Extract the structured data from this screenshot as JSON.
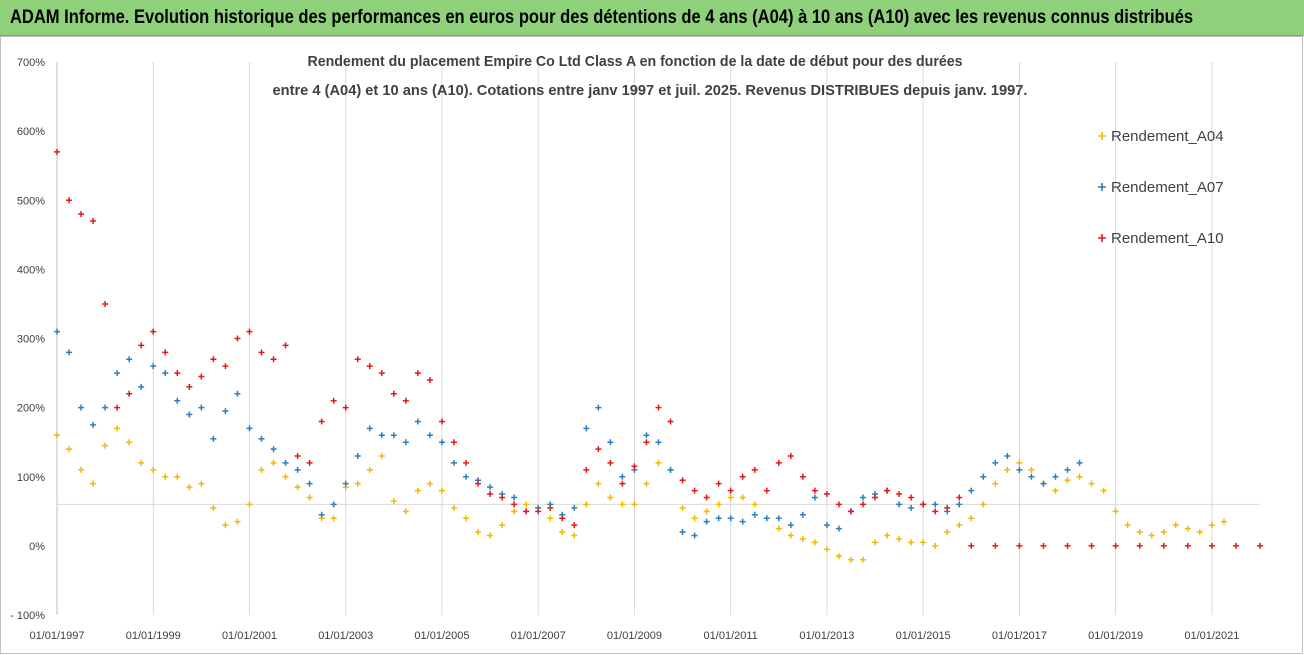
{
  "banner": {
    "title": "ADAM Informe. Evolution historique des performances en euros pour des détentions de 4 ans (A04) à 10 ans (A10) avec les revenus connus distribués"
  },
  "chart_data": {
    "type": "scatter",
    "title_lines": [
      "Rendement du placement Empire Co Ltd Class A en fonction de la date de début pour des durées",
      "entre 4 (A04) et 10 ans (A10). Cotations entre janv 1997 et juil. 2025. Revenus DISTRIBUES depuis janv. 1997."
    ],
    "y_ticks": [
      "700%",
      "600%",
      "500%",
      "400%",
      "300%",
      "200%",
      "100%",
      "0%",
      "- 100%"
    ],
    "ylim": [
      -100,
      700
    ],
    "x_ticks": [
      "01/01/1997",
      "01/01/1999",
      "01/01/2001",
      "01/01/2003",
      "01/01/2005",
      "01/01/2007",
      "01/01/2009",
      "01/01/2011",
      "01/01/2013",
      "01/01/2015",
      "01/01/2017",
      "01/01/2019",
      "01/01/2021"
    ],
    "xlim": [
      1997.0,
      2022.0
    ],
    "grid": "vertical",
    "legend_position": "right",
    "series": [
      {
        "name": "Rendement_A04",
        "color": "#f5b800",
        "x": [
          1997.0,
          1997.25,
          1997.5,
          1997.75,
          1998.0,
          1998.25,
          1998.5,
          1998.75,
          1999.0,
          1999.25,
          1999.5,
          1999.75,
          2000.0,
          2000.25,
          2000.5,
          2000.75,
          2001.0,
          2001.25,
          2001.5,
          2001.75,
          2002.0,
          2002.25,
          2002.5,
          2002.75,
          2003.0,
          2003.25,
          2003.5,
          2003.75,
          2004.0,
          2004.25,
          2004.5,
          2004.75,
          2005.0,
          2005.25,
          2005.5,
          2005.75,
          2006.0,
          2006.25,
          2006.5,
          2006.75,
          2007.0,
          2007.25,
          2007.5,
          2007.75,
          2008.0,
          2008.25,
          2008.5,
          2008.75,
          2009.0,
          2009.25,
          2009.5,
          2009.75,
          2010.0,
          2010.25,
          2010.5,
          2010.75,
          2011.0,
          2011.25,
          2011.5,
          2011.75,
          2012.0,
          2012.25,
          2012.5,
          2012.75,
          2013.0,
          2013.25,
          2013.5,
          2013.75,
          2014.0,
          2014.25,
          2014.5,
          2014.75,
          2015.0,
          2015.25,
          2015.5,
          2015.75,
          2016.0,
          2016.25,
          2016.5,
          2016.75,
          2017.0,
          2017.25,
          2017.5,
          2017.75,
          2018.0,
          2018.25,
          2018.5,
          2018.75,
          2019.0,
          2019.25,
          2019.5,
          2019.75,
          2020.0,
          2020.25,
          2020.5,
          2020.75,
          2021.0,
          2021.25
        ],
        "y": [
          160,
          140,
          110,
          90,
          145,
          170,
          150,
          120,
          110,
          100,
          100,
          85,
          90,
          55,
          30,
          35,
          60,
          110,
          120,
          100,
          85,
          70,
          40,
          40,
          85,
          90,
          110,
          130,
          65,
          50,
          80,
          90,
          80,
          55,
          40,
          20,
          15,
          30,
          50,
          60,
          55,
          40,
          20,
          15,
          60,
          90,
          70,
          60,
          60,
          90,
          120,
          110,
          55,
          40,
          50,
          60,
          70,
          70,
          60,
          40,
          25,
          15,
          10,
          5,
          -5,
          -15,
          -20,
          -20,
          5,
          15,
          10,
          5,
          5,
          0,
          20,
          30,
          40,
          60,
          90,
          110,
          120,
          110,
          90,
          80,
          95,
          100,
          90,
          80,
          50,
          30,
          20,
          15,
          20,
          30,
          25,
          20,
          30,
          35
        ]
      },
      {
        "name": "Rendement_A07",
        "color": "#2a7fc4",
        "x": [
          1997.0,
          1997.25,
          1997.5,
          1997.75,
          1998.0,
          1998.25,
          1998.5,
          1998.75,
          1999.0,
          1999.25,
          1999.5,
          1999.75,
          2000.0,
          2000.25,
          2000.5,
          2000.75,
          2001.0,
          2001.25,
          2001.5,
          2001.75,
          2002.0,
          2002.25,
          2002.5,
          2002.75,
          2003.0,
          2003.25,
          2003.5,
          2003.75,
          2004.0,
          2004.25,
          2004.5,
          2004.75,
          2005.0,
          2005.25,
          2005.5,
          2005.75,
          2006.0,
          2006.25,
          2006.5,
          2006.75,
          2007.0,
          2007.25,
          2007.5,
          2007.75,
          2008.0,
          2008.25,
          2008.5,
          2008.75,
          2009.0,
          2009.25,
          2009.5,
          2009.75,
          2010.0,
          2010.25,
          2010.5,
          2010.75,
          2011.0,
          2011.25,
          2011.5,
          2011.75,
          2012.0,
          2012.25,
          2012.5,
          2012.75,
          2013.0,
          2013.25,
          2013.5,
          2013.75,
          2014.0,
          2014.25,
          2014.5,
          2014.75,
          2015.0,
          2015.25,
          2015.5,
          2015.75,
          2016.0,
          2016.25,
          2016.5,
          2016.75,
          2017.0,
          2017.25,
          2017.5,
          2017.75,
          2018.0,
          2018.25
        ],
        "y": [
          310,
          280,
          200,
          175,
          200,
          250,
          270,
          230,
          260,
          250,
          210,
          190,
          200,
          155,
          195,
          220,
          170,
          155,
          140,
          120,
          110,
          90,
          45,
          60,
          90,
          130,
          170,
          160,
          160,
          150,
          180,
          160,
          150,
          120,
          100,
          95,
          85,
          75,
          70,
          50,
          55,
          60,
          45,
          55,
          170,
          200,
          150,
          100,
          110,
          160,
          150,
          110,
          20,
          15,
          35,
          40,
          40,
          35,
          45,
          40,
          40,
          30,
          45,
          70,
          30,
          25,
          50,
          70,
          75,
          80,
          60,
          55,
          60,
          60,
          50,
          60,
          80,
          100,
          120,
          130,
          110,
          100,
          90,
          100,
          110,
          120
        ]
      },
      {
        "name": "Rendement_A10",
        "color": "#e31a1c",
        "x": [
          1997.0,
          1997.25,
          1997.5,
          1997.75,
          1998.0,
          1998.25,
          1998.5,
          1998.75,
          1999.0,
          1999.25,
          1999.5,
          1999.75,
          2000.0,
          2000.25,
          2000.5,
          2000.75,
          2001.0,
          2001.25,
          2001.5,
          2001.75,
          2002.0,
          2002.25,
          2002.5,
          2002.75,
          2003.0,
          2003.25,
          2003.5,
          2003.75,
          2004.0,
          2004.25,
          2004.5,
          2004.75,
          2005.0,
          2005.25,
          2005.5,
          2005.75,
          2006.0,
          2006.25,
          2006.5,
          2006.75,
          2007.0,
          2007.25,
          2007.5,
          2007.75,
          2008.0,
          2008.25,
          2008.5,
          2008.75,
          2009.0,
          2009.25,
          2009.5,
          2009.75,
          2010.0,
          2010.25,
          2010.5,
          2010.75,
          2011.0,
          2011.25,
          2011.5,
          2011.75,
          2012.0,
          2012.25,
          2012.5,
          2012.75,
          2013.0,
          2013.25,
          2013.5,
          2013.75,
          2014.0,
          2014.25,
          2014.5,
          2014.75,
          2015.0,
          2015.25,
          2015.5,
          2015.75,
          2016.0,
          2016.5,
          2017.0,
          2017.5,
          2018.0,
          2018.5,
          2019.0,
          2019.5,
          2020.0,
          2020.5,
          2021.0,
          2021.5,
          2022.0
        ],
        "y": [
          570,
          500,
          480,
          470,
          350,
          200,
          220,
          290,
          310,
          280,
          250,
          230,
          245,
          270,
          260,
          300,
          310,
          280,
          270,
          290,
          130,
          120,
          180,
          210,
          200,
          270,
          260,
          250,
          220,
          210,
          250,
          240,
          180,
          150,
          120,
          90,
          75,
          70,
          60,
          50,
          50,
          55,
          40,
          30,
          110,
          140,
          120,
          90,
          115,
          150,
          200,
          180,
          95,
          80,
          70,
          90,
          80,
          100,
          110,
          80,
          120,
          130,
          100,
          80,
          75,
          60,
          50,
          60,
          70,
          80,
          75,
          70,
          60,
          50,
          55,
          70,
          0,
          0,
          0,
          0,
          0,
          0,
          0,
          0,
          0,
          0,
          0,
          0,
          0
        ]
      }
    ]
  }
}
